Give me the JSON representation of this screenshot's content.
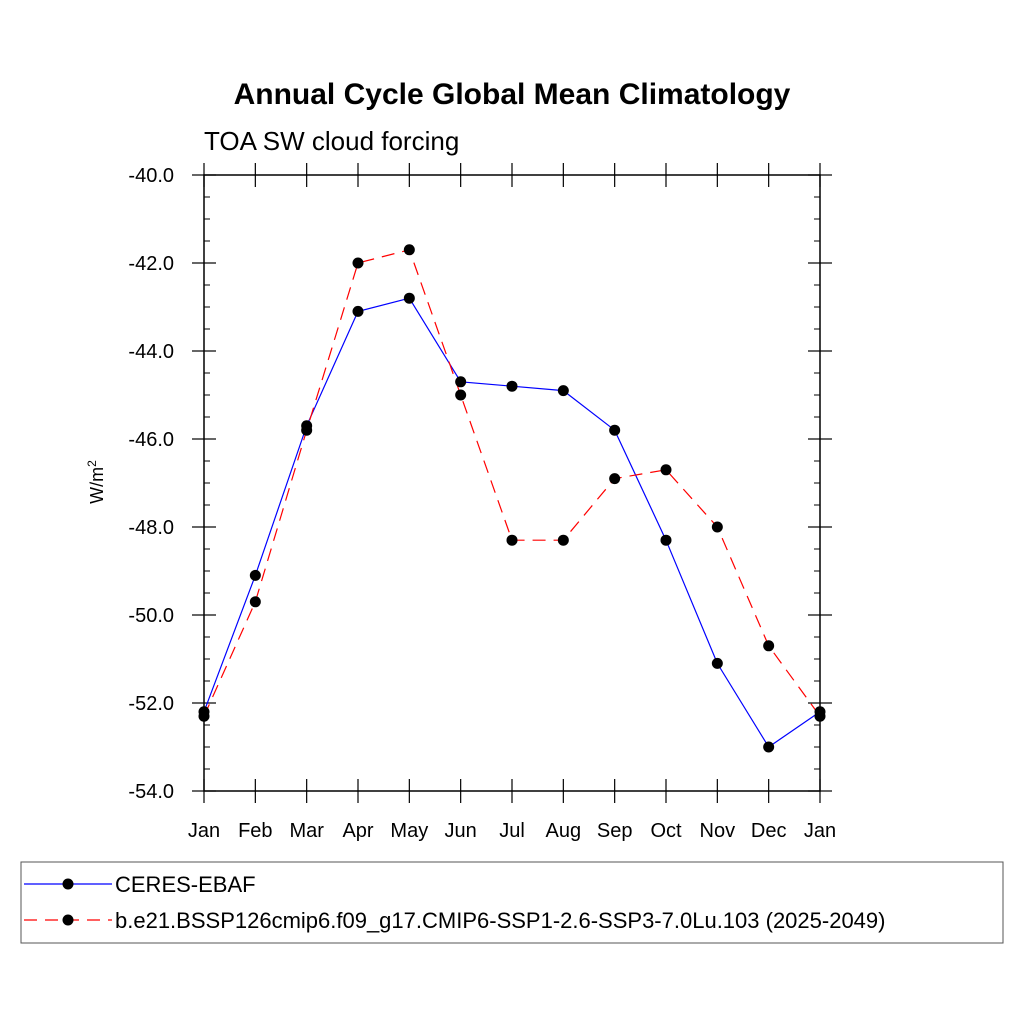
{
  "chart_data": {
    "type": "line",
    "title": "Annual Cycle Global Mean Climatology",
    "subtitle": "TOA SW cloud forcing",
    "ylabel": "W/m",
    "ylabel_sup": "2",
    "categories": [
      "Jan",
      "Feb",
      "Mar",
      "Apr",
      "May",
      "Jun",
      "Jul",
      "Aug",
      "Sep",
      "Oct",
      "Nov",
      "Dec",
      "Jan"
    ],
    "ylim": [
      -54.0,
      -40.0
    ],
    "yticks": [
      "-40.0",
      "-42.0",
      "-44.0",
      "-46.0",
      "-48.0",
      "-50.0",
      "-52.0",
      "-54.0"
    ],
    "grid": false,
    "legend_position": "bottom",
    "series": [
      {
        "name": "CERES-EBAF",
        "color": "#0000ff",
        "style": "solid",
        "values": [
          -52.2,
          -49.1,
          -45.7,
          -43.1,
          -42.8,
          -44.7,
          -44.8,
          -44.9,
          -45.8,
          -48.3,
          -51.1,
          -53.0,
          -52.2
        ]
      },
      {
        "name": "b.e21.BSSP126cmip6.f09_g17.CMIP6-SSP1-2.6-SSP3-7.0Lu.103 (2025-2049)",
        "color": "#ff0000",
        "style": "dashed",
        "values": [
          -52.3,
          -49.7,
          -45.8,
          -42.0,
          -41.7,
          -45.0,
          -48.3,
          -48.3,
          -46.9,
          -46.7,
          -48.0,
          -50.7,
          -52.3
        ]
      }
    ]
  }
}
